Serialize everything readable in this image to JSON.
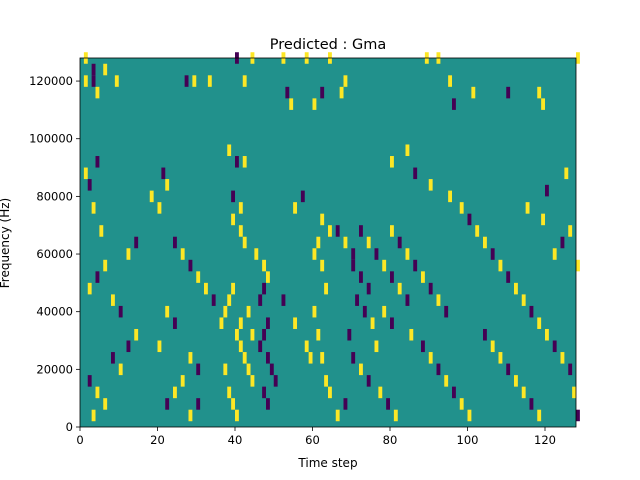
{
  "chart_data": {
    "type": "heatmap",
    "title": "Predicted : Gma",
    "xlabel": "Time step",
    "ylabel": "Frequency (Hz)",
    "xlim": [
      0,
      128
    ],
    "ylim": [
      0,
      128000
    ],
    "xticks": [
      0,
      20,
      40,
      60,
      80,
      100,
      120
    ],
    "yticks": [
      0,
      20000,
      40000,
      60000,
      80000,
      100000,
      120000
    ],
    "xtick_labels": [
      "0",
      "20",
      "40",
      "60",
      "80",
      "100",
      "120"
    ],
    "ytick_labels": [
      "0",
      "20000",
      "40000",
      "60000",
      "80000",
      "100000",
      "120000"
    ],
    "colormap": "viridis",
    "value_levels": [
      -1,
      0,
      1
    ],
    "colors": {
      "low": "#440154",
      "mid": "#21918c",
      "high": "#fde725"
    },
    "background_value": 0,
    "grid": false,
    "cell_width": 1,
    "cell_height": 4000,
    "cells": [
      [
        1,
        126000,
        1
      ],
      [
        3,
        122000,
        -1
      ],
      [
        6,
        122000,
        1
      ],
      [
        1,
        118000,
        1
      ],
      [
        3,
        118000,
        -1
      ],
      [
        9,
        118000,
        1
      ],
      [
        4,
        114000,
        1
      ],
      [
        27,
        118000,
        -1
      ],
      [
        29,
        118000,
        1
      ],
      [
        33,
        118000,
        1
      ],
      [
        40,
        126000,
        -1
      ],
      [
        44,
        126000,
        1
      ],
      [
        52,
        126000,
        1
      ],
      [
        58,
        126000,
        1
      ],
      [
        64,
        126000,
        1
      ],
      [
        42,
        118000,
        1
      ],
      [
        53,
        114000,
        -1
      ],
      [
        54,
        110000,
        1
      ],
      [
        60,
        110000,
        1
      ],
      [
        67,
        114000,
        1
      ],
      [
        68,
        118000,
        1
      ],
      [
        62,
        114000,
        -1
      ],
      [
        89,
        126000,
        1
      ],
      [
        92,
        126000,
        1
      ],
      [
        95,
        118000,
        1
      ],
      [
        96,
        110000,
        -1
      ],
      [
        101,
        114000,
        1
      ],
      [
        110,
        114000,
        -1
      ],
      [
        118,
        114000,
        1
      ],
      [
        119,
        110000,
        1
      ],
      [
        128,
        126000,
        1
      ],
      [
        38,
        94000,
        1
      ],
      [
        40,
        90000,
        -1
      ],
      [
        42,
        90000,
        1
      ],
      [
        39,
        78000,
        -1
      ],
      [
        41,
        74000,
        1
      ],
      [
        39,
        70000,
        1
      ],
      [
        41,
        66000,
        1
      ],
      [
        42,
        62000,
        1
      ],
      [
        45,
        58000,
        1
      ],
      [
        47,
        54000,
        1
      ],
      [
        48,
        50000,
        1
      ],
      [
        52,
        42000,
        -1
      ],
      [
        55,
        34000,
        1
      ],
      [
        58,
        26000,
        1
      ],
      [
        59,
        22000,
        1
      ],
      [
        60,
        58000,
        1
      ],
      [
        61,
        62000,
        1
      ],
      [
        62,
        54000,
        1
      ],
      [
        63,
        46000,
        1
      ],
      [
        60,
        38000,
        1
      ],
      [
        61,
        30000,
        1
      ],
      [
        62,
        22000,
        1
      ],
      [
        63,
        14000,
        1
      ],
      [
        64,
        10000,
        1
      ],
      [
        36,
        34000,
        1
      ],
      [
        37,
        38000,
        1
      ],
      [
        38,
        42000,
        1
      ],
      [
        39,
        46000,
        1
      ],
      [
        40,
        30000,
        1
      ],
      [
        41,
        26000,
        1
      ],
      [
        42,
        22000,
        1
      ],
      [
        43,
        18000,
        1
      ],
      [
        44,
        14000,
        1
      ],
      [
        37,
        18000,
        1
      ],
      [
        38,
        10000,
        1
      ],
      [
        39,
        6000,
        1
      ],
      [
        40,
        2000,
        1
      ],
      [
        41,
        34000,
        1
      ],
      [
        43,
        38000,
        1
      ],
      [
        44,
        30000,
        1
      ],
      [
        46,
        26000,
        -1
      ],
      [
        47,
        30000,
        -1
      ],
      [
        48,
        22000,
        -1
      ],
      [
        49,
        18000,
        -1
      ],
      [
        50,
        14000,
        -1
      ],
      [
        47,
        10000,
        -1
      ],
      [
        48,
        6000,
        -1
      ],
      [
        46,
        42000,
        -1
      ],
      [
        47,
        46000,
        -1
      ],
      [
        48,
        34000,
        -1
      ],
      [
        70,
        54000,
        -1
      ],
      [
        72,
        50000,
        -1
      ],
      [
        74,
        46000,
        -1
      ],
      [
        71,
        42000,
        -1
      ],
      [
        73,
        38000,
        -1
      ],
      [
        75,
        34000,
        1
      ],
      [
        69,
        30000,
        -1
      ],
      [
        76,
        26000,
        1
      ],
      [
        70,
        22000,
        -1
      ],
      [
        72,
        18000,
        1
      ],
      [
        74,
        14000,
        -1
      ],
      [
        77,
        10000,
        1
      ],
      [
        79,
        6000,
        -1
      ],
      [
        81,
        2000,
        1
      ],
      [
        68,
        6000,
        -1
      ],
      [
        66,
        2000,
        1
      ],
      [
        85,
        30000,
        1
      ],
      [
        88,
        26000,
        -1
      ],
      [
        90,
        22000,
        1
      ],
      [
        92,
        18000,
        -1
      ],
      [
        94,
        14000,
        1
      ],
      [
        96,
        10000,
        -1
      ],
      [
        98,
        6000,
        1
      ],
      [
        100,
        2000,
        1
      ],
      [
        104,
        30000,
        -1
      ],
      [
        106,
        26000,
        1
      ],
      [
        108,
        22000,
        1
      ],
      [
        110,
        18000,
        -1
      ],
      [
        112,
        14000,
        1
      ],
      [
        114,
        10000,
        1
      ],
      [
        116,
        6000,
        -1
      ],
      [
        118,
        2000,
        1
      ],
      [
        120,
        30000,
        1
      ],
      [
        122,
        26000,
        -1
      ],
      [
        124,
        22000,
        1
      ],
      [
        126,
        18000,
        -1
      ],
      [
        127,
        10000,
        1
      ],
      [
        128,
        2000,
        -1
      ],
      [
        2,
        14000,
        -1
      ],
      [
        4,
        10000,
        1
      ],
      [
        6,
        6000,
        1
      ],
      [
        3,
        2000,
        1
      ],
      [
        8,
        22000,
        -1
      ],
      [
        10,
        18000,
        1
      ],
      [
        12,
        26000,
        -1
      ],
      [
        14,
        30000,
        1
      ],
      [
        2,
        46000,
        1
      ],
      [
        4,
        50000,
        -1
      ],
      [
        6,
        54000,
        1
      ],
      [
        8,
        42000,
        1
      ],
      [
        10,
        38000,
        -1
      ],
      [
        12,
        58000,
        1
      ],
      [
        14,
        62000,
        -1
      ],
      [
        5,
        66000,
        1
      ],
      [
        3,
        74000,
        1
      ],
      [
        1,
        86000,
        1
      ],
      [
        2,
        82000,
        -1
      ],
      [
        4,
        90000,
        -1
      ],
      [
        21,
        86000,
        -1
      ],
      [
        22,
        82000,
        1
      ],
      [
        18,
        78000,
        1
      ],
      [
        20,
        74000,
        1
      ],
      [
        24,
        62000,
        -1
      ],
      [
        26,
        58000,
        1
      ],
      [
        28,
        54000,
        -1
      ],
      [
        30,
        50000,
        1
      ],
      [
        32,
        46000,
        1
      ],
      [
        34,
        42000,
        -1
      ],
      [
        22,
        38000,
        1
      ],
      [
        24,
        34000,
        -1
      ],
      [
        20,
        26000,
        1
      ],
      [
        28,
        22000,
        1
      ],
      [
        30,
        18000,
        -1
      ],
      [
        26,
        14000,
        1
      ],
      [
        24,
        10000,
        1
      ],
      [
        22,
        6000,
        -1
      ],
      [
        28,
        2000,
        1
      ],
      [
        30,
        6000,
        -1
      ],
      [
        80,
        90000,
        1
      ],
      [
        84,
        94000,
        1
      ],
      [
        86,
        86000,
        -1
      ],
      [
        90,
        82000,
        1
      ],
      [
        95,
        78000,
        1
      ],
      [
        98,
        74000,
        1
      ],
      [
        100,
        70000,
        -1
      ],
      [
        102,
        66000,
        1
      ],
      [
        104,
        62000,
        1
      ],
      [
        106,
        58000,
        -1
      ],
      [
        108,
        54000,
        1
      ],
      [
        110,
        50000,
        -1
      ],
      [
        112,
        46000,
        1
      ],
      [
        114,
        42000,
        1
      ],
      [
        116,
        38000,
        -1
      ],
      [
        118,
        34000,
        1
      ],
      [
        122,
        58000,
        1
      ],
      [
        124,
        62000,
        -1
      ],
      [
        126,
        66000,
        1
      ],
      [
        128,
        54000,
        1
      ],
      [
        119,
        70000,
        1
      ],
      [
        115,
        74000,
        1
      ],
      [
        120,
        80000,
        -1
      ],
      [
        125,
        86000,
        1
      ],
      [
        80,
        66000,
        1
      ],
      [
        82,
        62000,
        -1
      ],
      [
        84,
        58000,
        1
      ],
      [
        86,
        54000,
        -1
      ],
      [
        88,
        50000,
        1
      ],
      [
        90,
        46000,
        -1
      ],
      [
        92,
        42000,
        1
      ],
      [
        94,
        38000,
        -1
      ],
      [
        74,
        62000,
        1
      ],
      [
        76,
        58000,
        -1
      ],
      [
        78,
        54000,
        1
      ],
      [
        80,
        50000,
        -1
      ],
      [
        82,
        46000,
        1
      ],
      [
        84,
        42000,
        -1
      ],
      [
        78,
        38000,
        1
      ],
      [
        80,
        34000,
        -1
      ],
      [
        66,
        66000,
        -1
      ],
      [
        68,
        62000,
        1
      ],
      [
        70,
        58000,
        -1
      ],
      [
        72,
        66000,
        -1
      ],
      [
        62,
        70000,
        1
      ],
      [
        64,
        66000,
        1
      ],
      [
        55,
        74000,
        1
      ],
      [
        57,
        78000,
        -1
      ]
    ]
  }
}
